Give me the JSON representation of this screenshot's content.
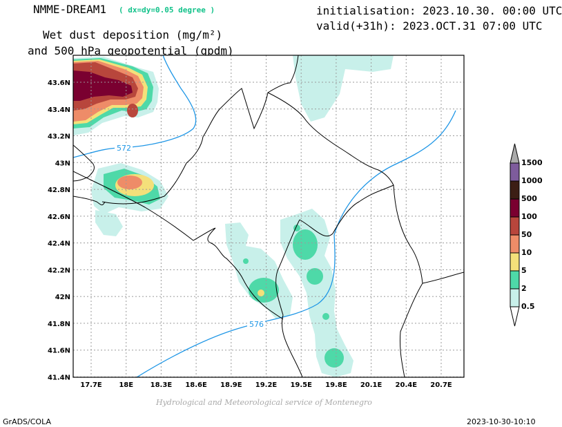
{
  "header": {
    "model_name": "NMME-DREAM1",
    "resolution": "( dx=dy=0.05 degree )",
    "title_line1": "Wet dust deposition (mg/m²)",
    "title_line2": "and 500 hPa geopotential (gpdm)",
    "init_label": "initialisation: 2023.10.30. 00:00 UTC",
    "valid_label": "valid(+31h): 2023.OCT.31 07:00 UTC"
  },
  "map": {
    "lat_ticks": [
      "43.6N",
      "43.4N",
      "43.2N",
      "43N",
      "42.8N",
      "42.6N",
      "42.4N",
      "42.2N",
      "42N",
      "41.8N",
      "41.6N",
      "41.4N"
    ],
    "lon_ticks": [
      "17.7E",
      "18E",
      "18.3E",
      "18.6E",
      "18.9E",
      "19.2E",
      "19.5E",
      "19.8E",
      "20.1E",
      "20.4E",
      "20.7E"
    ],
    "contour_labels": [
      "572",
      "576"
    ],
    "contour_color": "#1e96e6"
  },
  "colorbar": {
    "levels": [
      "0.5",
      "2",
      "5",
      "10",
      "50",
      "100",
      "500",
      "1000",
      "1500"
    ],
    "colors": [
      "#c8f0ea",
      "#4ed9a8",
      "#f4e07a",
      "#ee8c68",
      "#b8463c",
      "#7a0030",
      "#3c1e14",
      "#7e5c9c",
      "#aaaaaa"
    ]
  },
  "footer": {
    "credit": "Hydrological and Meteorological service of Montenegro",
    "software": "GrADS/COLA",
    "timestamp": "2023-10-30-10:10"
  }
}
